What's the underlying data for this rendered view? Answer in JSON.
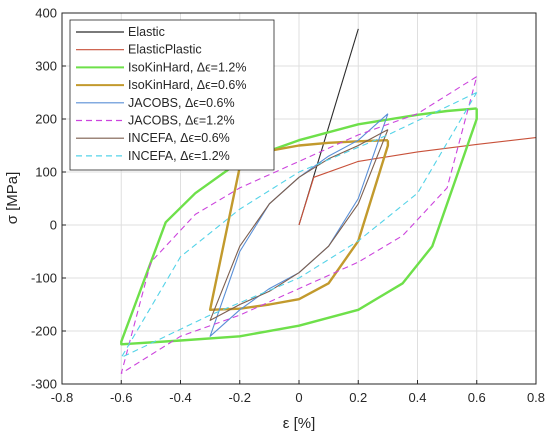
{
  "chart_data": {
    "type": "line",
    "title": "",
    "xlabel": "ε [%]",
    "ylabel": "σ [MPa]",
    "xlim": [
      -0.8,
      0.8
    ],
    "ylim": [
      -300,
      400
    ],
    "x_ticks": [
      -0.8,
      -0.6,
      -0.4,
      -0.2,
      0,
      0.2,
      0.4,
      0.6,
      0.8
    ],
    "x_tick_labels": [
      "-0.8",
      "-0.6",
      "-0.4",
      "-0.2",
      "0",
      "0.2",
      "0.4",
      "0.6",
      "0.8"
    ],
    "y_ticks": [
      -300,
      -200,
      -100,
      0,
      100,
      200,
      300,
      400
    ],
    "y_tick_labels": [
      "-300",
      "-200",
      "-100",
      "0",
      "100",
      "200",
      "300",
      "400"
    ],
    "grid": true,
    "legend_position": "top-left",
    "series": [
      {
        "name": "Elastic",
        "color": "#2b2b2b",
        "dash": "solid",
        "x": [
          0,
          0.2
        ],
        "y": [
          0,
          370
        ]
      },
      {
        "name": "ElasticPlastic",
        "color": "#c8513a",
        "dash": "solid",
        "x": [
          0,
          0.05,
          0.2,
          0.4,
          0.6,
          0.8
        ],
        "y": [
          0,
          90,
          120,
          138,
          152,
          165
        ]
      },
      {
        "name": "IsoKinHard,  Δϵ=1.2%",
        "color": "#6ee04a",
        "dash": "solid",
        "x": [
          0.6,
          0.5,
          0.4,
          0.2,
          0,
          -0.2,
          -0.35,
          -0.45,
          -0.6,
          -0.6,
          -0.4,
          -0.2,
          0,
          0.2,
          0.35,
          0.45,
          0.6,
          0.6
        ],
        "y": [
          220,
          215,
          208,
          190,
          160,
          120,
          60,
          5,
          -220,
          -225,
          -218,
          -210,
          -190,
          -160,
          -110,
          -40,
          200,
          220
        ]
      },
      {
        "name": "IsoKinHard,  Δϵ=0.6%",
        "color": "#c29a2d",
        "dash": "solid",
        "x": [
          0.3,
          0.2,
          0.1,
          0,
          -0.1,
          -0.2,
          -0.3,
          -0.3,
          -0.2,
          -0.1,
          0,
          0.1,
          0.2,
          0.3,
          0.3
        ],
        "y": [
          160,
          158,
          155,
          150,
          140,
          110,
          -160,
          -160,
          -158,
          -150,
          -140,
          -110,
          -30,
          150,
          160
        ]
      },
      {
        "name": "JACOBS,  Δϵ=0.6%",
        "color": "#5a8fd6",
        "dash": "solid",
        "x": [
          0.3,
          0.2,
          0.1,
          0,
          -0.1,
          -0.2,
          -0.3,
          -0.2,
          -0.1,
          0,
          0.1,
          0.2,
          0.3
        ],
        "y": [
          210,
          160,
          130,
          90,
          40,
          -50,
          -210,
          -160,
          -120,
          -90,
          -40,
          50,
          210
        ]
      },
      {
        "name": "JACOBS,  Δϵ=1.2%",
        "color": "#cc44dd",
        "dash": "dashed",
        "x": [
          0.6,
          0.4,
          0.2,
          0,
          -0.2,
          -0.35,
          -0.5,
          -0.6,
          -0.4,
          -0.2,
          0,
          0.2,
          0.35,
          0.5,
          0.6
        ],
        "y": [
          280,
          210,
          170,
          120,
          70,
          20,
          -70,
          -280,
          -210,
          -170,
          -120,
          -70,
          -20,
          70,
          280
        ]
      },
      {
        "name": "INCEFA,  Δϵ=0.6%",
        "color": "#7d5f4f",
        "dash": "solid",
        "x": [
          0.3,
          0.2,
          0.1,
          0,
          -0.1,
          -0.2,
          -0.3,
          -0.2,
          -0.1,
          0,
          0.1,
          0.2,
          0.3
        ],
        "y": [
          180,
          150,
          125,
          90,
          40,
          -40,
          -180,
          -150,
          -125,
          -90,
          -40,
          40,
          180
        ]
      },
      {
        "name": "INCEFA,  Δϵ=1.2%",
        "color": "#54d3e8",
        "dash": "dashed",
        "x": [
          0.6,
          0.3,
          0,
          -0.2,
          -0.4,
          -0.6,
          -0.3,
          0,
          0.2,
          0.4,
          0.6
        ],
        "y": [
          250,
          170,
          100,
          30,
          -60,
          -250,
          -170,
          -100,
          -30,
          60,
          250
        ]
      }
    ]
  }
}
